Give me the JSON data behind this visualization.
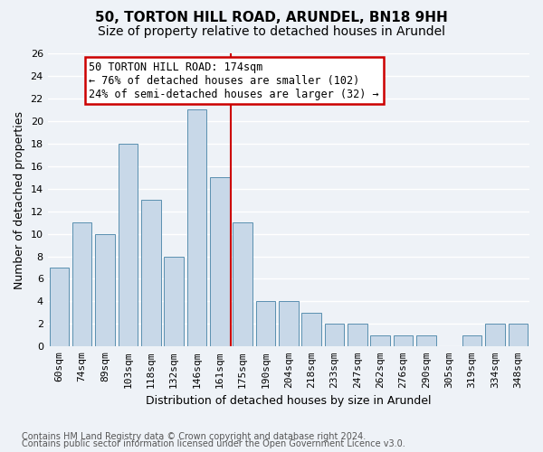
{
  "title1": "50, TORTON HILL ROAD, ARUNDEL, BN18 9HH",
  "title2": "Size of property relative to detached houses in Arundel",
  "xlabel": "Distribution of detached houses by size in Arundel",
  "ylabel": "Number of detached properties",
  "categories": [
    "60sqm",
    "74sqm",
    "89sqm",
    "103sqm",
    "118sqm",
    "132sqm",
    "146sqm",
    "161sqm",
    "175sqm",
    "190sqm",
    "204sqm",
    "218sqm",
    "233sqm",
    "247sqm",
    "262sqm",
    "276sqm",
    "290sqm",
    "305sqm",
    "319sqm",
    "334sqm",
    "348sqm"
  ],
  "values": [
    7,
    11,
    10,
    18,
    13,
    8,
    21,
    15,
    11,
    4,
    4,
    3,
    2,
    2,
    1,
    1,
    1,
    0,
    1,
    2,
    2
  ],
  "bar_color": "#c8d8e8",
  "bar_edge_color": "#5a90b0",
  "vline_x": 7.5,
  "vline_color": "#cc0000",
  "annotation_title": "50 TORTON HILL ROAD: 174sqm",
  "annotation_line1": "← 76% of detached houses are smaller (102)",
  "annotation_line2": "24% of semi-detached houses are larger (32) →",
  "annotation_box_color": "#ffffff",
  "annotation_box_edge_color": "#cc0000",
  "ylim": [
    0,
    26
  ],
  "yticks": [
    0,
    2,
    4,
    6,
    8,
    10,
    12,
    14,
    16,
    18,
    20,
    22,
    24,
    26
  ],
  "footer1": "Contains HM Land Registry data © Crown copyright and database right 2024.",
  "footer2": "Contains public sector information licensed under the Open Government Licence v3.0.",
  "bg_color": "#eef2f7",
  "grid_color": "#ffffff",
  "title_fontsize": 11,
  "subtitle_fontsize": 10,
  "axis_label_fontsize": 9,
  "tick_fontsize": 8,
  "annotation_fontsize": 8.5,
  "footer_fontsize": 7
}
